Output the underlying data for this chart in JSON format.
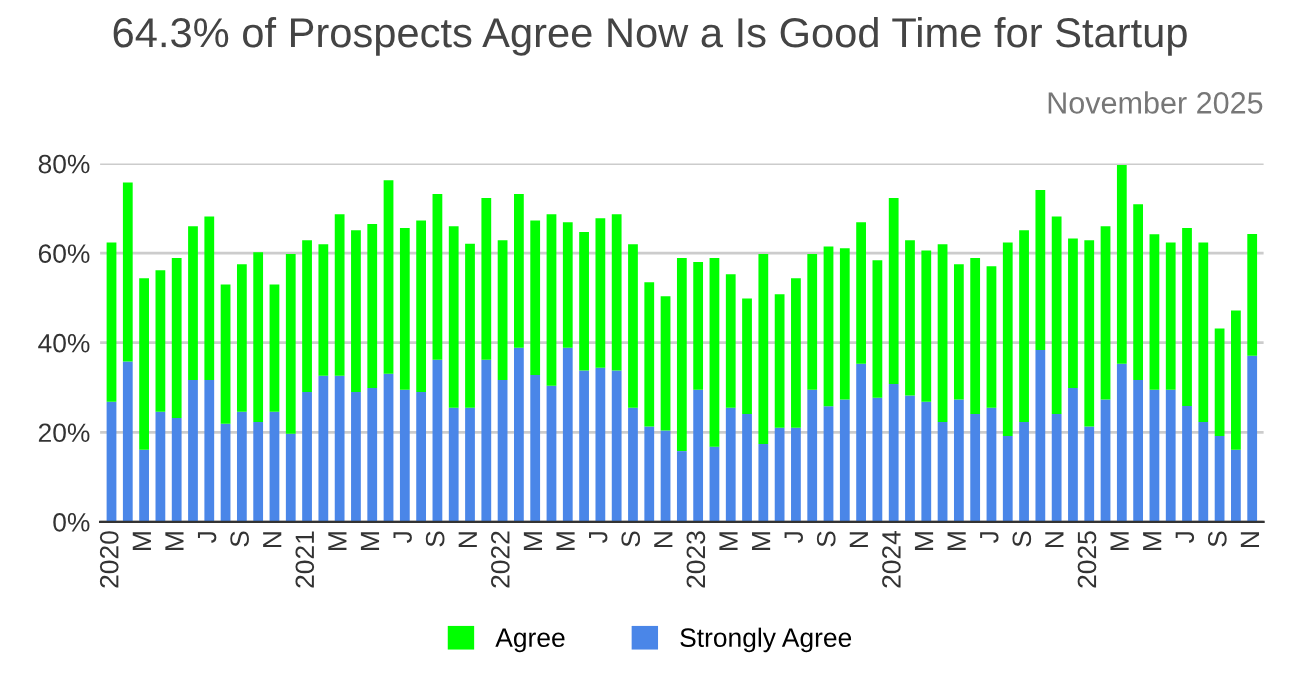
{
  "chart_data": {
    "type": "bar",
    "stacked": true,
    "title": "64.3% of Prospects Agree Now a Is Good Time for Startup",
    "subtitle": "November 2025",
    "categories": [
      "2020",
      null,
      "M",
      null,
      "M",
      null,
      "J",
      null,
      "S",
      null,
      "N",
      null,
      "2021",
      null,
      "M",
      null,
      "M",
      null,
      "J",
      null,
      "S",
      null,
      "N",
      null,
      "2022",
      null,
      "M",
      null,
      "M",
      null,
      "J",
      null,
      "S",
      null,
      "N",
      null,
      "2023",
      null,
      "M",
      null,
      "M",
      null,
      "J",
      null,
      "S",
      null,
      "N",
      null,
      "2024",
      null,
      "M",
      null,
      "M",
      null,
      "J",
      null,
      "S",
      null,
      "N",
      null,
      "2025",
      null,
      "M",
      null,
      "M",
      null,
      "J",
      null,
      "S",
      null,
      "N"
    ],
    "series": [
      {
        "name": "Strongly Agree",
        "color": "#4a86e8",
        "values": [
          26.8,
          35.8,
          16.1,
          24.6,
          23.2,
          31.7,
          31.7,
          21.9,
          24.6,
          22.3,
          24.6,
          19.7,
          29,
          32.6,
          32.6,
          29,
          29.9,
          33.1,
          29.5,
          29,
          36.2,
          25.5,
          25.5,
          36.2,
          31.7,
          38.9,
          32.8,
          30.4,
          38.9,
          33.8,
          34.4,
          33.8,
          25.5,
          21.3,
          20.4,
          15.8,
          29.5,
          16.8,
          25.5,
          24.1,
          17.4,
          21,
          21,
          29.5,
          25.8,
          27.3,
          35.3,
          27.7,
          30.8,
          28.2,
          26.8,
          22.3,
          27.3,
          24.1,
          25.5,
          19.2,
          22.3,
          38.4,
          24.1,
          29.9,
          21.3,
          27.3,
          35.3,
          31.7,
          29.5,
          29.5,
          25.9,
          22.3,
          19.2,
          16.1,
          37.1
        ]
      },
      {
        "name": "Agree",
        "color": "#00ff00",
        "values": [
          35.6,
          40.0,
          38.3,
          31.6,
          35.7,
          34.3,
          36.5,
          31.1,
          32.9,
          37.9,
          28.4,
          40.1,
          33.9,
          29.4,
          36.1,
          36.1,
          36.6,
          43.2,
          36.1,
          38.3,
          37.0,
          40.5,
          36.6,
          36.1,
          31.2,
          34.3,
          34.5,
          38.3,
          28.0,
          30.9,
          33.4,
          34.9,
          36.5,
          32.2,
          30.0,
          43.1,
          28.5,
          42.1,
          29.8,
          25.8,
          42.4,
          29.8,
          33.4,
          30.3,
          35.7,
          33.8,
          31.6,
          30.7,
          41.5,
          34.7,
          33.8,
          39.7,
          30.2,
          34.8,
          31.6,
          43.2,
          42.8,
          35.7,
          44.1,
          33.4,
          41.6,
          38.7,
          44.4,
          39.2,
          34.7,
          32.9,
          39.7,
          40.1,
          24.0,
          31.1,
          27.2
        ]
      }
    ],
    "ylim": [
      0,
      80
    ],
    "yticks": [
      {
        "value": 0,
        "label": "0%"
      },
      {
        "value": 20,
        "label": "20%"
      },
      {
        "value": 40,
        "label": "40%"
      },
      {
        "value": 60,
        "label": "60%"
      },
      {
        "value": 80,
        "label": "80%"
      }
    ],
    "grid": "y",
    "legend": "bottom"
  }
}
